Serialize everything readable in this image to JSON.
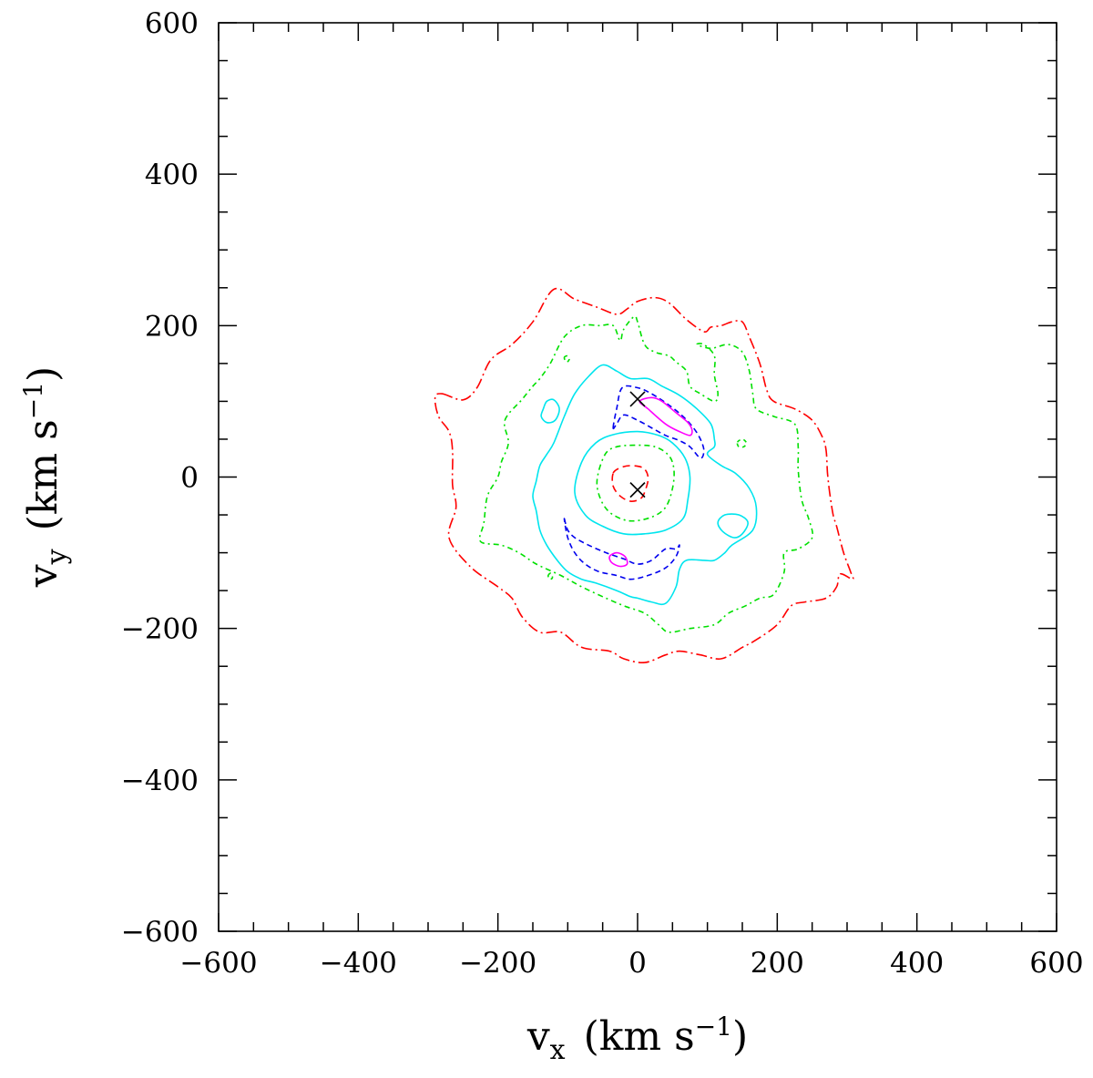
{
  "chart_data": {
    "type": "contour",
    "xlabel": {
      "main": "v",
      "sub": "x",
      "unit_pre": "(km  s",
      "sup": "−1",
      "unit_post": ")"
    },
    "ylabel": {
      "main": "v",
      "sub": "y",
      "unit_pre": "(km  s",
      "sup": "−1",
      "unit_post": ")"
    },
    "xlim": [
      -600,
      600
    ],
    "ylim": [
      -600,
      600
    ],
    "xticks": [
      -600,
      -400,
      -200,
      0,
      200,
      400,
      600
    ],
    "yticks": [
      -600,
      -400,
      -200,
      0,
      200,
      400,
      600
    ],
    "xtick_labels": [
      "−600",
      "−400",
      "−200",
      "0",
      "200",
      "400",
      "600"
    ],
    "ytick_labels": [
      "−600",
      "−400",
      "−200",
      "0",
      "200",
      "400",
      "600"
    ],
    "minor_tick_step": 50,
    "grid": false,
    "legend": "none",
    "markers": [
      {
        "symbol": "x",
        "x": 0,
        "y": 103
      },
      {
        "symbol": "x",
        "x": 0,
        "y": -17
      }
    ],
    "contours": [
      {
        "level": 1,
        "color": "#ff0000",
        "dash": "12,4,2,4",
        "points": [
          [
            -280,
            110
          ],
          [
            -250,
            102
          ],
          [
            -230,
            118
          ],
          [
            -210,
            155
          ],
          [
            -180,
            175
          ],
          [
            -150,
            205
          ],
          [
            -120,
            248
          ],
          [
            -90,
            235
          ],
          [
            -60,
            225
          ],
          [
            -30,
            215
          ],
          [
            -15,
            222
          ],
          [
            0,
            232
          ],
          [
            25,
            237
          ],
          [
            45,
            230
          ],
          [
            70,
            208
          ],
          [
            95,
            192
          ],
          [
            105,
            198
          ],
          [
            120,
            200
          ],
          [
            135,
            205
          ],
          [
            150,
            205
          ],
          [
            160,
            185
          ],
          [
            175,
            150
          ],
          [
            185,
            115
          ],
          [
            195,
            100
          ],
          [
            225,
            90
          ],
          [
            250,
            75
          ],
          [
            265,
            52
          ],
          [
            270,
            35
          ],
          [
            272,
            5
          ],
          [
            275,
            -20
          ],
          [
            280,
            -50
          ],
          [
            285,
            -65
          ],
          [
            295,
            -100
          ],
          [
            305,
            -125
          ],
          [
            308,
            -135
          ],
          [
            290,
            -128
          ],
          [
            285,
            -145
          ],
          [
            270,
            -160
          ],
          [
            240,
            -165
          ],
          [
            220,
            -170
          ],
          [
            200,
            -195
          ],
          [
            170,
            -215
          ],
          [
            150,
            -225
          ],
          [
            120,
            -240
          ],
          [
            90,
            -235
          ],
          [
            60,
            -230
          ],
          [
            40,
            -235
          ],
          [
            10,
            -245
          ],
          [
            -20,
            -240
          ],
          [
            -40,
            -230
          ],
          [
            -80,
            -225
          ],
          [
            -110,
            -205
          ],
          [
            -140,
            -205
          ],
          [
            -165,
            -185
          ],
          [
            -180,
            -160
          ],
          [
            -200,
            -145
          ],
          [
            -240,
            -118
          ],
          [
            -270,
            -80
          ],
          [
            -260,
            -40
          ],
          [
            -265,
            -10
          ],
          [
            -265,
            35
          ],
          [
            -270,
            60
          ],
          [
            -285,
            80
          ],
          [
            -290,
            105
          ]
        ]
      },
      {
        "level": 1,
        "color": "#ff0000",
        "dash": "8,5",
        "points": [
          [
            -35,
            5
          ],
          [
            -25,
            12
          ],
          [
            -10,
            15
          ],
          [
            8,
            12
          ],
          [
            15,
            0
          ],
          [
            12,
            -15
          ],
          [
            5,
            -28
          ],
          [
            -10,
            -32
          ],
          [
            -25,
            -25
          ],
          [
            -35,
            -12
          ]
        ]
      },
      {
        "level": 2,
        "color": "#00e000",
        "dash": "6,4,2,4",
        "points": [
          [
            -190,
            75
          ],
          [
            -165,
            103
          ],
          [
            -150,
            120
          ],
          [
            -140,
            130
          ],
          [
            -125,
            150
          ],
          [
            -105,
            185
          ],
          [
            -80,
            200
          ],
          [
            -55,
            200
          ],
          [
            -35,
            200
          ],
          [
            -25,
            180
          ],
          [
            -20,
            195
          ],
          [
            -5,
            212
          ],
          [
            0,
            205
          ],
          [
            10,
            175
          ],
          [
            25,
            165
          ],
          [
            45,
            160
          ],
          [
            55,
            152
          ],
          [
            70,
            140
          ],
          [
            75,
            120
          ],
          [
            90,
            110
          ],
          [
            110,
            100
          ],
          [
            115,
            110
          ],
          [
            110,
            135
          ],
          [
            110,
            160
          ],
          [
            95,
            175
          ],
          [
            85,
            175
          ],
          [
            105,
            170
          ],
          [
            130,
            175
          ],
          [
            150,
            165
          ],
          [
            160,
            140
          ],
          [
            165,
            110
          ],
          [
            170,
            90
          ],
          [
            195,
            80
          ],
          [
            225,
            70
          ],
          [
            230,
            40
          ],
          [
            230,
            10
          ],
          [
            235,
            -30
          ],
          [
            245,
            -55
          ],
          [
            250,
            -80
          ],
          [
            230,
            -95
          ],
          [
            210,
            -100
          ],
          [
            210,
            -125
          ],
          [
            195,
            -155
          ],
          [
            175,
            -160
          ],
          [
            155,
            -170
          ],
          [
            130,
            -180
          ],
          [
            110,
            -195
          ],
          [
            75,
            -200
          ],
          [
            45,
            -205
          ],
          [
            30,
            -195
          ],
          [
            10,
            -180
          ],
          [
            -20,
            -170
          ],
          [
            -50,
            -158
          ],
          [
            -80,
            -145
          ],
          [
            -110,
            -130
          ],
          [
            -145,
            -115
          ],
          [
            -170,
            -100
          ],
          [
            -195,
            -90
          ],
          [
            -225,
            -85
          ],
          [
            -220,
            -60
          ],
          [
            -215,
            -25
          ],
          [
            -200,
            0
          ],
          [
            -195,
            20
          ],
          [
            -185,
            45
          ]
        ]
      },
      {
        "level": 2,
        "color": "#00e000",
        "dash": "6,4,2,4",
        "points": [
          [
            -55,
            10
          ],
          [
            -45,
            32
          ],
          [
            -30,
            40
          ],
          [
            -5,
            42
          ],
          [
            25,
            40
          ],
          [
            45,
            28
          ],
          [
            52,
            10
          ],
          [
            50,
            -15
          ],
          [
            40,
            -40
          ],
          [
            20,
            -53
          ],
          [
            -10,
            -58
          ],
          [
            -35,
            -50
          ],
          [
            -50,
            -35
          ],
          [
            -58,
            -12
          ]
        ]
      },
      {
        "level": 2,
        "color": "#00e000",
        "dash": "4,4",
        "points": [
          [
            -105,
            158
          ],
          [
            -100,
            160
          ],
          [
            -98,
            155
          ],
          [
            -102,
            152
          ]
        ]
      },
      {
        "level": 2,
        "color": "#00e000",
        "dash": "4,4",
        "points": [
          [
            -128,
            -130
          ],
          [
            -124,
            -127
          ],
          [
            -122,
            -133
          ],
          [
            -126,
            -135
          ]
        ]
      },
      {
        "level": 2,
        "color": "#00e000",
        "dash": "4,4",
        "points": [
          [
            143,
            46
          ],
          [
            150,
            50
          ],
          [
            156,
            45
          ],
          [
            152,
            40
          ],
          [
            145,
            40
          ]
        ]
      },
      {
        "level": 3,
        "color": "#00e5ee",
        "dash": "",
        "points": [
          [
            -120,
            45
          ],
          [
            -105,
            80
          ],
          [
            -90,
            110
          ],
          [
            -70,
            133
          ],
          [
            -50,
            148
          ],
          [
            -30,
            140
          ],
          [
            -10,
            130
          ],
          [
            15,
            130
          ],
          [
            35,
            120
          ],
          [
            60,
            108
          ],
          [
            85,
            90
          ],
          [
            105,
            70
          ],
          [
            110,
            50
          ],
          [
            110,
            40
          ],
          [
            100,
            30
          ],
          [
            120,
            15
          ],
          [
            140,
            5
          ],
          [
            160,
            -15
          ],
          [
            170,
            -40
          ],
          [
            165,
            -70
          ],
          [
            135,
            -90
          ],
          [
            125,
            -100
          ],
          [
            110,
            -110
          ],
          [
            95,
            -110
          ],
          [
            70,
            -110
          ],
          [
            60,
            -122
          ],
          [
            55,
            -145
          ],
          [
            40,
            -167
          ],
          [
            20,
            -165
          ],
          [
            0,
            -160
          ],
          [
            -10,
            -158
          ],
          [
            -30,
            -150
          ],
          [
            -60,
            -140
          ],
          [
            -80,
            -135
          ],
          [
            -100,
            -125
          ],
          [
            -115,
            -110
          ],
          [
            -130,
            -90
          ],
          [
            -140,
            -70
          ],
          [
            -145,
            -45
          ],
          [
            -150,
            -25
          ],
          [
            -145,
            -5
          ],
          [
            -140,
            15
          ],
          [
            -130,
            30
          ]
        ]
      },
      {
        "level": 3,
        "color": "#00e5ee",
        "dash": "",
        "points": [
          [
            -90,
            -20
          ],
          [
            -80,
            20
          ],
          [
            -60,
            45
          ],
          [
            -35,
            56
          ],
          [
            0,
            60
          ],
          [
            30,
            55
          ],
          [
            50,
            45
          ],
          [
            68,
            25
          ],
          [
            75,
            0
          ],
          [
            72,
            -30
          ],
          [
            65,
            -55
          ],
          [
            40,
            -70
          ],
          [
            10,
            -75
          ],
          [
            -20,
            -75
          ],
          [
            -50,
            -65
          ],
          [
            -75,
            -50
          ]
        ]
      },
      {
        "level": 3,
        "color": "#00e5ee",
        "dash": "",
        "points": [
          [
            -135,
            90
          ],
          [
            -130,
            100
          ],
          [
            -120,
            102
          ],
          [
            -112,
            90
          ],
          [
            -118,
            75
          ],
          [
            -130,
            72
          ],
          [
            -138,
            80
          ]
        ]
      },
      {
        "level": 3,
        "color": "#00e5ee",
        "dash": "",
        "points": [
          [
            115,
            -60
          ],
          [
            125,
            -50
          ],
          [
            145,
            -50
          ],
          [
            158,
            -60
          ],
          [
            150,
            -75
          ],
          [
            138,
            -80
          ],
          [
            122,
            -72
          ]
        ]
      },
      {
        "level": 4,
        "color": "#0000ee",
        "dash": "6,4",
        "points": [
          [
            -35,
            65
          ],
          [
            -30,
            90
          ],
          [
            -22,
            118
          ],
          [
            0,
            118
          ],
          [
            20,
            110
          ],
          [
            45,
            95
          ],
          [
            65,
            80
          ],
          [
            80,
            65
          ],
          [
            90,
            50
          ],
          [
            95,
            35
          ],
          [
            90,
            25
          ],
          [
            75,
            40
          ],
          [
            60,
            48
          ],
          [
            40,
            55
          ],
          [
            20,
            65
          ],
          [
            0,
            75
          ],
          [
            -20,
            82
          ],
          [
            -30,
            70
          ]
        ]
      },
      {
        "level": 4,
        "color": "#0000ee",
        "dash": "6,4",
        "points": [
          [
            -105,
            -55
          ],
          [
            -100,
            -70
          ],
          [
            -90,
            -80
          ],
          [
            -70,
            -90
          ],
          [
            -45,
            -100
          ],
          [
            -20,
            -108
          ],
          [
            0,
            -115
          ],
          [
            20,
            -110
          ],
          [
            40,
            -95
          ],
          [
            55,
            -95
          ],
          [
            60,
            -90
          ],
          [
            55,
            -105
          ],
          [
            40,
            -120
          ],
          [
            15,
            -130
          ],
          [
            -10,
            -135
          ],
          [
            -30,
            -130
          ],
          [
            -55,
            -125
          ],
          [
            -75,
            -115
          ],
          [
            -90,
            -100
          ],
          [
            -100,
            -80
          ]
        ]
      },
      {
        "level": 5,
        "color": "#ff00ff",
        "dash": "",
        "points": [
          [
            3,
            100
          ],
          [
            15,
            90
          ],
          [
            40,
            70
          ],
          [
            60,
            60
          ],
          [
            75,
            55
          ],
          [
            78,
            62
          ],
          [
            72,
            72
          ],
          [
            55,
            85
          ],
          [
            35,
            100
          ],
          [
            20,
            105
          ]
        ]
      },
      {
        "level": 5,
        "color": "#ff00ff",
        "dash": "",
        "points": [
          [
            -40,
            -105
          ],
          [
            -30,
            -100
          ],
          [
            -18,
            -105
          ],
          [
            -15,
            -115
          ],
          [
            -25,
            -118
          ],
          [
            -37,
            -113
          ]
        ]
      }
    ]
  }
}
